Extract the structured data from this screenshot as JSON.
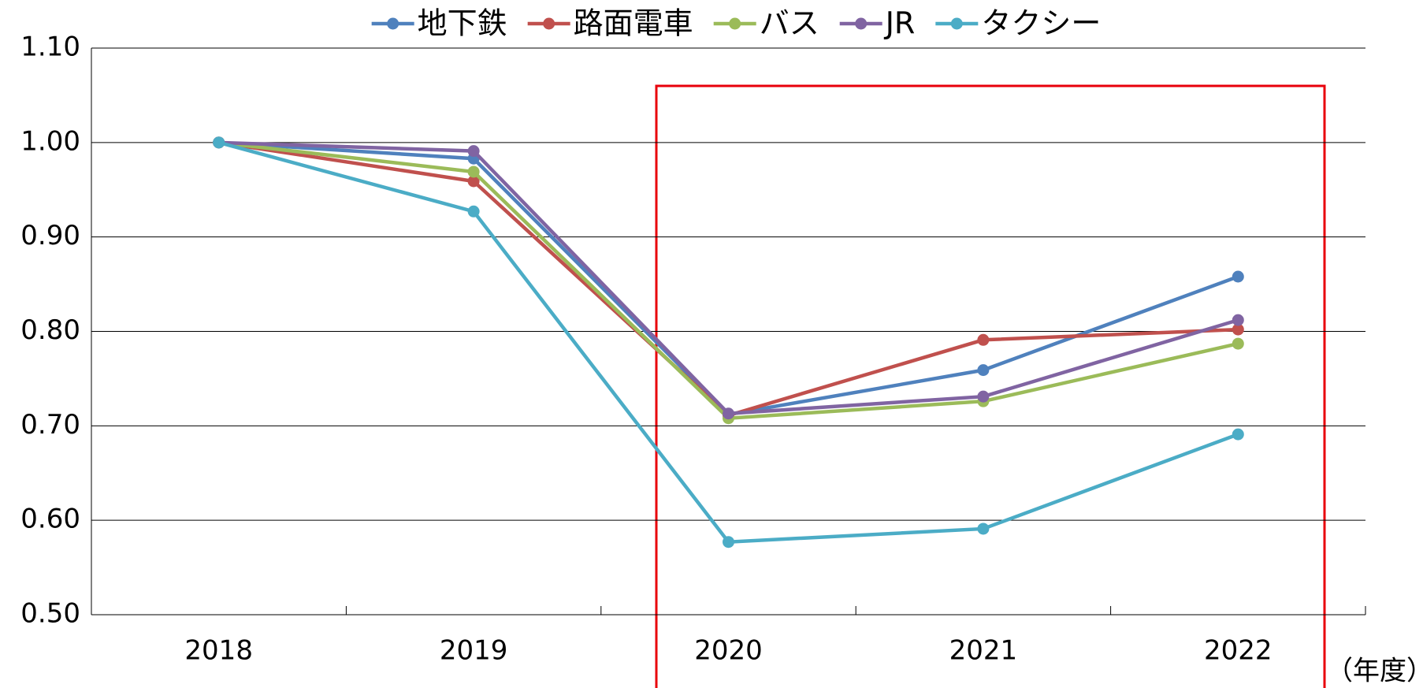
{
  "chart_data": {
    "type": "line",
    "categories": [
      "2018",
      "2019",
      "2020",
      "2021",
      "2022"
    ],
    "series": [
      {
        "name": "地下鉄",
        "color": "#4f81bd",
        "values": [
          1.0,
          0.983,
          0.712,
          0.759,
          0.858
        ]
      },
      {
        "name": "路面電車",
        "color": "#c0504d",
        "values": [
          1.0,
          0.959,
          0.711,
          0.791,
          0.802
        ]
      },
      {
        "name": "バス",
        "color": "#9bbb59",
        "values": [
          1.0,
          0.969,
          0.708,
          0.726,
          0.787
        ]
      },
      {
        "name": "JR",
        "color": "#8064a2",
        "values": [
          1.0,
          0.991,
          0.713,
          0.731,
          0.812
        ]
      },
      {
        "name": "タクシー",
        "color": "#4bacc6",
        "values": [
          1.0,
          0.927,
          0.577,
          0.591,
          0.691
        ]
      }
    ],
    "x_label": "（年度）",
    "ylim": [
      0.5,
      1.1
    ],
    "yticks": [
      {
        "value": 0.5,
        "label": "0.50"
      },
      {
        "value": 0.6,
        "label": "0.60"
      },
      {
        "value": 0.7,
        "label": "0.70"
      },
      {
        "value": 0.8,
        "label": "0.80"
      },
      {
        "value": 0.9,
        "label": "0.90"
      },
      {
        "value": 1.0,
        "label": "1.00"
      },
      {
        "value": 1.1,
        "label": "1.10"
      }
    ],
    "grid": true,
    "legend": "top"
  }
}
